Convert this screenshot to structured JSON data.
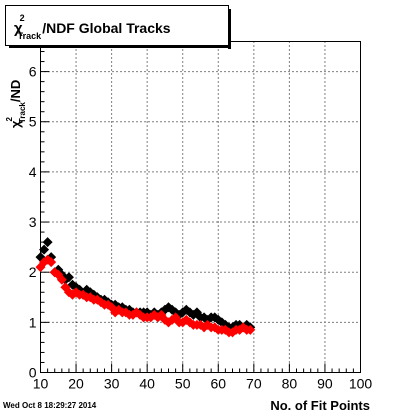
{
  "chart_data": {
    "type": "scatter",
    "title_parts": {
      "chi": "χ",
      "sup": "2",
      "sub": "Track",
      "rest": "/NDF  Global Tracks"
    },
    "xlabel": "No. of Fit Points",
    "ylabel_parts": {
      "chi": "χ",
      "sup": "2",
      "sub": "Track",
      "rest": "/ND"
    },
    "xlim": [
      10,
      100
    ],
    "ylim": [
      0,
      6.6
    ],
    "x_ticks": [
      10,
      20,
      30,
      40,
      50,
      60,
      70,
      80,
      90,
      100
    ],
    "y_ticks": [
      0,
      1,
      2,
      3,
      4,
      5,
      6
    ],
    "grid": true,
    "marker": "diamond",
    "series": [
      {
        "color": "#000000",
        "x": [
          10,
          11,
          12,
          13,
          14,
          15,
          16,
          17,
          18,
          19,
          20,
          21,
          22,
          23,
          24,
          25,
          26,
          27,
          28,
          29,
          30,
          31,
          32,
          33,
          34,
          35,
          36,
          37,
          38,
          39,
          40,
          41,
          42,
          43,
          44,
          45,
          46,
          47,
          48,
          49,
          50,
          51,
          52,
          53,
          54,
          55,
          56,
          57,
          58,
          59,
          60,
          61,
          62,
          63,
          64,
          65,
          66,
          67,
          68,
          69
        ],
        "y": [
          2.3,
          2.45,
          2.6,
          2.3,
          2.0,
          2.05,
          1.95,
          1.85,
          1.9,
          1.75,
          1.7,
          1.65,
          1.55,
          1.65,
          1.6,
          1.55,
          1.5,
          1.45,
          1.45,
          1.4,
          1.35,
          1.35,
          1.3,
          1.3,
          1.25,
          1.25,
          1.2,
          1.2,
          1.2,
          1.2,
          1.2,
          1.15,
          1.2,
          1.15,
          1.2,
          1.25,
          1.3,
          1.25,
          1.2,
          1.15,
          1.2,
          1.25,
          1.2,
          1.15,
          1.2,
          1.1,
          1.1,
          1.05,
          1.1,
          1.1,
          1.05,
          1.0,
          0.95,
          0.9,
          0.9,
          0.95,
          0.95,
          0.9,
          0.95,
          0.9
        ]
      },
      {
        "color": "#ff0000",
        "x": [
          10,
          11,
          12,
          13,
          14,
          15,
          16,
          17,
          18,
          19,
          20,
          21,
          22,
          23,
          24,
          25,
          26,
          27,
          28,
          29,
          30,
          31,
          32,
          33,
          34,
          35,
          36,
          37,
          38,
          39,
          40,
          41,
          42,
          43,
          44,
          45,
          46,
          47,
          48,
          49,
          50,
          51,
          52,
          53,
          54,
          55,
          56,
          57,
          58,
          59,
          60,
          61,
          62,
          63,
          64,
          65,
          66,
          67,
          68,
          69
        ],
        "y": [
          2.1,
          2.2,
          2.25,
          2.2,
          2.0,
          1.95,
          1.85,
          1.7,
          1.6,
          1.55,
          1.6,
          1.55,
          1.55,
          1.5,
          1.5,
          1.45,
          1.45,
          1.4,
          1.35,
          1.35,
          1.3,
          1.2,
          1.25,
          1.2,
          1.2,
          1.15,
          1.15,
          1.2,
          1.15,
          1.1,
          1.1,
          1.1,
          1.15,
          1.1,
          1.15,
          1.05,
          1.0,
          1.05,
          1.1,
          1.0,
          1.0,
          1.05,
          1.0,
          0.95,
          0.95,
          0.95,
          0.9,
          0.95,
          0.9,
          0.9,
          0.85,
          0.85,
          0.85,
          0.8,
          0.8,
          0.85,
          0.85,
          0.9,
          0.85,
          0.85
        ]
      }
    ]
  },
  "footer": {
    "timestamp": "Wed Oct  8 18:29:27 2014"
  },
  "colors": {
    "frame": "#000000",
    "grid": "#000000",
    "background": "#ffffff"
  }
}
